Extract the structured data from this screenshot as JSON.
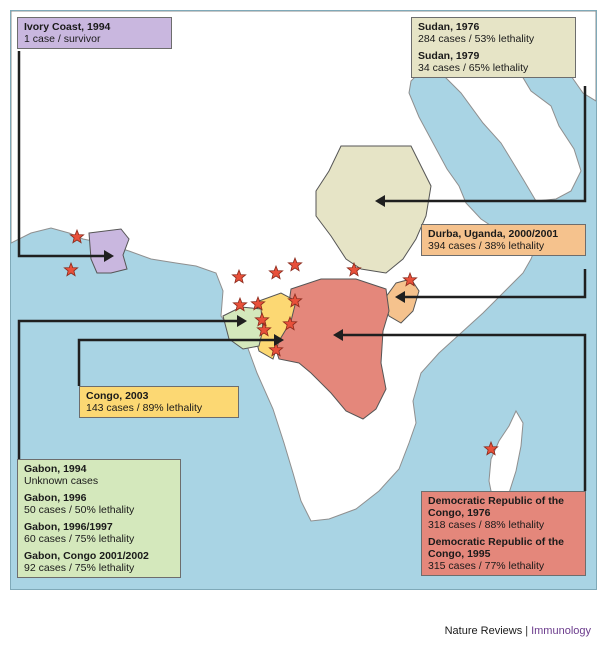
{
  "outbreaks": {
    "ivory_coast": {
      "color": "#c9b7df",
      "entries": [
        {
          "title": "Ivory Coast, 1994",
          "detail": "1 case / survivor"
        }
      ]
    },
    "sudan": {
      "color": "#e6e4c6",
      "entries": [
        {
          "title": "Sudan, 1976",
          "detail": "284 cases / 53% lethality"
        },
        {
          "title": "Sudan, 1979",
          "detail": "34 cases / 65% lethality"
        }
      ]
    },
    "uganda": {
      "color": "#f5c28d",
      "entries": [
        {
          "title": "Durba, Uganda, 2000/2001",
          "detail": "394 cases / 38% lethality"
        }
      ]
    },
    "congo": {
      "color": "#fcd873",
      "entries": [
        {
          "title": "Congo, 2003",
          "detail": "143 cases / 89% lethality"
        }
      ]
    },
    "gabon": {
      "color": "#d4e8bc",
      "entries": [
        {
          "title": "Gabon, 1994",
          "detail": "Unknown cases"
        },
        {
          "title": "Gabon, 1996",
          "detail": "50 cases / 50% lethality"
        },
        {
          "title": "Gabon, 1996/1997",
          "detail": "60 cases / 75% lethality"
        },
        {
          "title": "Gabon, Congo 2001/2002",
          "detail": "92 cases / 75% lethality"
        }
      ]
    },
    "drc": {
      "color": "#e4877b",
      "entries": [
        {
          "title": "Democratic Republic of the Congo, 1976",
          "detail": "318 cases / 88% lethality"
        },
        {
          "title": "Democratic Republic of the Congo, 1995",
          "detail": "315 cases / 77% lethality"
        }
      ]
    }
  },
  "colors": {
    "ocean": "#a9d4e4",
    "land": "#ffffff",
    "borders": "#9a9a9a",
    "star": "#e8503a",
    "arrow": "#1f1f1f"
  },
  "credit": {
    "journal": "Nature Reviews",
    "separator": "|",
    "section": "Immunology"
  }
}
